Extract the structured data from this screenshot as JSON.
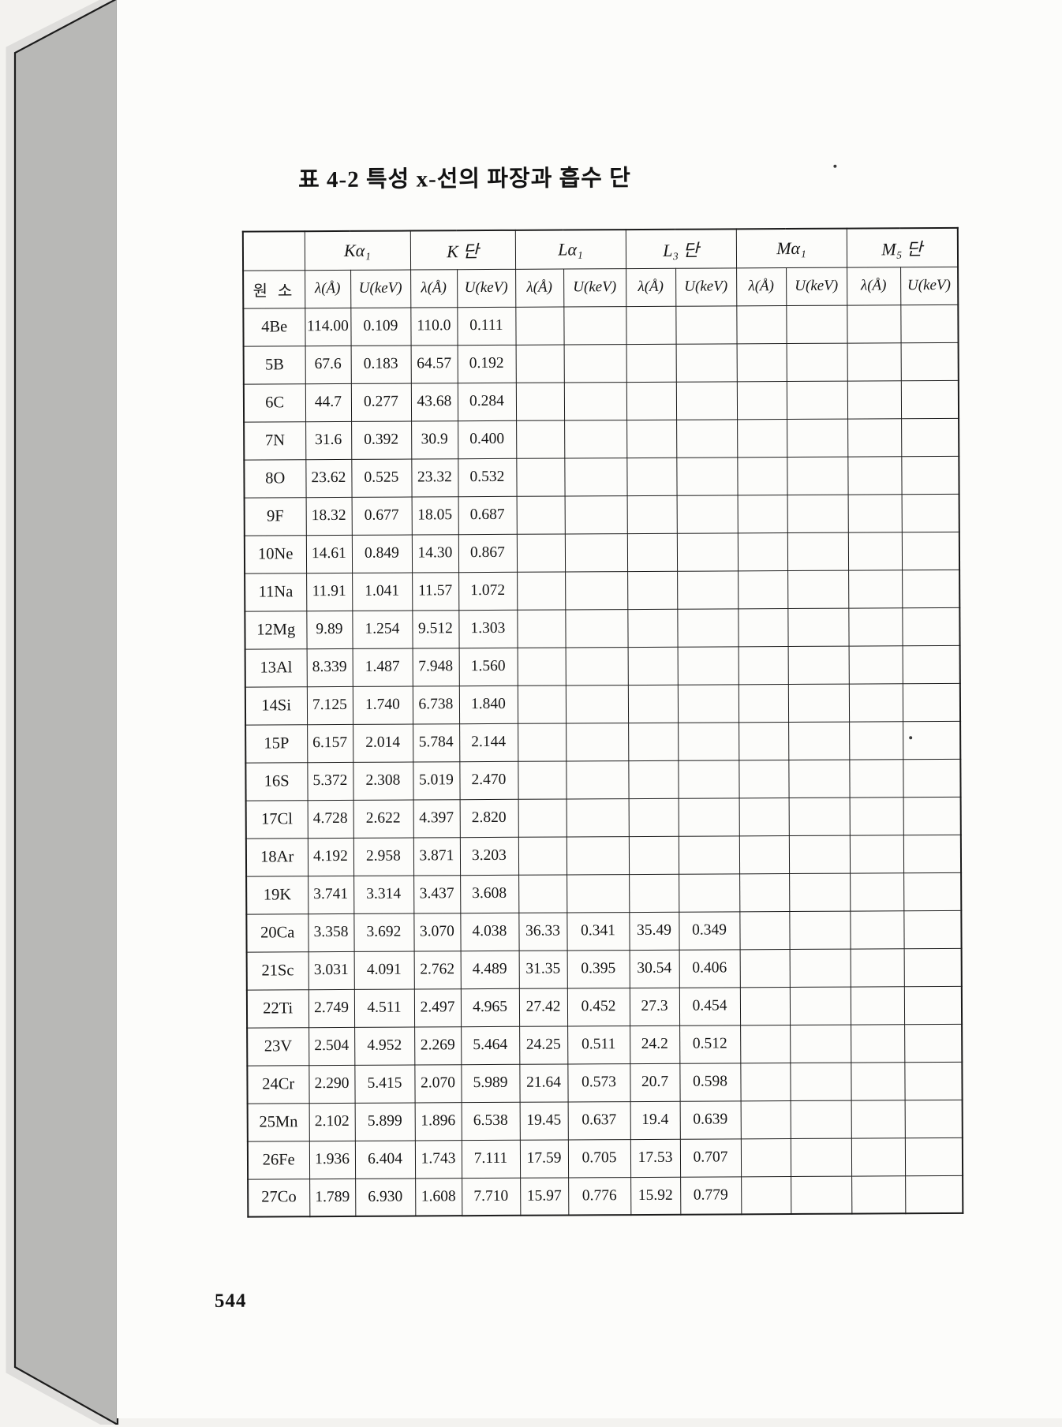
{
  "page": {
    "title": "표 4-2  특성 x-선의 파장과 흡수 단",
    "number": "544"
  },
  "colors": {
    "paper": "#fcfcfa",
    "ink": "#1b1b1b",
    "book_edge_gray": "#b8b8b6",
    "background": "#f3f2ef"
  },
  "icons": {
    "book_edge": "book-page-stack-edge"
  },
  "table": {
    "groups": [
      {
        "label": "",
        "colspan": 1
      },
      {
        "label": "Kα₁",
        "colspan": 2
      },
      {
        "label": "K 단",
        "colspan": 2
      },
      {
        "label": "Lα₁",
        "colspan": 2
      },
      {
        "label": "L₃ 단",
        "colspan": 2
      },
      {
        "label": "Mα₁",
        "colspan": 2
      },
      {
        "label": "M₅ 단",
        "colspan": 2
      }
    ],
    "subheaders": [
      "원 소",
      "λ(Å)",
      "U(keV)",
      "λ(Å)",
      "U(keV)",
      "λ(Å)",
      "U(keV)",
      "λ(Å)",
      "U(keV)",
      "λ(Å)",
      "U(keV)",
      "λ(Å)",
      "U(keV)"
    ],
    "rows": [
      [
        "4Be",
        "114.00",
        "0.109",
        "110.0",
        "0.111",
        "",
        "",
        "",
        "",
        "",
        "",
        "",
        ""
      ],
      [
        "5B",
        "67.6",
        "0.183",
        "64.57",
        "0.192",
        "",
        "",
        "",
        "",
        "",
        "",
        "",
        ""
      ],
      [
        "6C",
        "44.7",
        "0.277",
        "43.68",
        "0.284",
        "",
        "",
        "",
        "",
        "",
        "",
        "",
        ""
      ],
      [
        "7N",
        "31.6",
        "0.392",
        "30.9",
        "0.400",
        "",
        "",
        "",
        "",
        "",
        "",
        "",
        ""
      ],
      [
        "8O",
        "23.62",
        "0.525",
        "23.32",
        "0.532",
        "",
        "",
        "",
        "",
        "",
        "",
        "",
        ""
      ],
      [
        "9F",
        "18.32",
        "0.677",
        "18.05",
        "0.687",
        "",
        "",
        "",
        "",
        "",
        "",
        "",
        ""
      ],
      [
        "10Ne",
        "14.61",
        "0.849",
        "14.30",
        "0.867",
        "",
        "",
        "",
        "",
        "",
        "",
        "",
        ""
      ],
      [
        "11Na",
        "11.91",
        "1.041",
        "11.57",
        "1.072",
        "",
        "",
        "",
        "",
        "",
        "",
        "",
        ""
      ],
      [
        "12Mg",
        "9.89",
        "1.254",
        "9.512",
        "1.303",
        "",
        "",
        "",
        "",
        "",
        "",
        "",
        ""
      ],
      [
        "13Al",
        "8.339",
        "1.487",
        "7.948",
        "1.560",
        "",
        "",
        "",
        "",
        "",
        "",
        "",
        ""
      ],
      [
        "14Si",
        "7.125",
        "1.740",
        "6.738",
        "1.840",
        "",
        "",
        "",
        "",
        "",
        "",
        "",
        ""
      ],
      [
        "15P",
        "6.157",
        "2.014",
        "5.784",
        "2.144",
        "",
        "",
        "",
        "",
        "",
        "",
        "",
        ""
      ],
      [
        "16S",
        "5.372",
        "2.308",
        "5.019",
        "2.470",
        "",
        "",
        "",
        "",
        "",
        "",
        "",
        ""
      ],
      [
        "17Cl",
        "4.728",
        "2.622",
        "4.397",
        "2.820",
        "",
        "",
        "",
        "",
        "",
        "",
        "",
        ""
      ],
      [
        "18Ar",
        "4.192",
        "2.958",
        "3.871",
        "3.203",
        "",
        "",
        "",
        "",
        "",
        "",
        "",
        ""
      ],
      [
        "19K",
        "3.741",
        "3.314",
        "3.437",
        "3.608",
        "",
        "",
        "",
        "",
        "",
        "",
        "",
        ""
      ],
      [
        "20Ca",
        "3.358",
        "3.692",
        "3.070",
        "4.038",
        "36.33",
        "0.341",
        "35.49",
        "0.349",
        "",
        "",
        "",
        ""
      ],
      [
        "21Sc",
        "3.031",
        "4.091",
        "2.762",
        "4.489",
        "31.35",
        "0.395",
        "30.54",
        "0.406",
        "",
        "",
        "",
        ""
      ],
      [
        "22Ti",
        "2.749",
        "4.511",
        "2.497",
        "4.965",
        "27.42",
        "0.452",
        "27.3",
        "0.454",
        "",
        "",
        "",
        ""
      ],
      [
        "23V",
        "2.504",
        "4.952",
        "2.269",
        "5.464",
        "24.25",
        "0.511",
        "24.2",
        "0.512",
        "",
        "",
        "",
        ""
      ],
      [
        "24Cr",
        "2.290",
        "5.415",
        "2.070",
        "5.989",
        "21.64",
        "0.573",
        "20.7",
        "0.598",
        "",
        "",
        "",
        ""
      ],
      [
        "25Mn",
        "2.102",
        "5.899",
        "1.896",
        "6.538",
        "19.45",
        "0.637",
        "19.4",
        "0.639",
        "",
        "",
        "",
        ""
      ],
      [
        "26Fe",
        "1.936",
        "6.404",
        "1.743",
        "7.111",
        "17.59",
        "0.705",
        "17.53",
        "0.707",
        "",
        "",
        "",
        ""
      ],
      [
        "27Co",
        "1.789",
        "6.930",
        "1.608",
        "7.710",
        "15.97",
        "0.776",
        "15.92",
        "0.779",
        "",
        "",
        "",
        ""
      ]
    ]
  }
}
